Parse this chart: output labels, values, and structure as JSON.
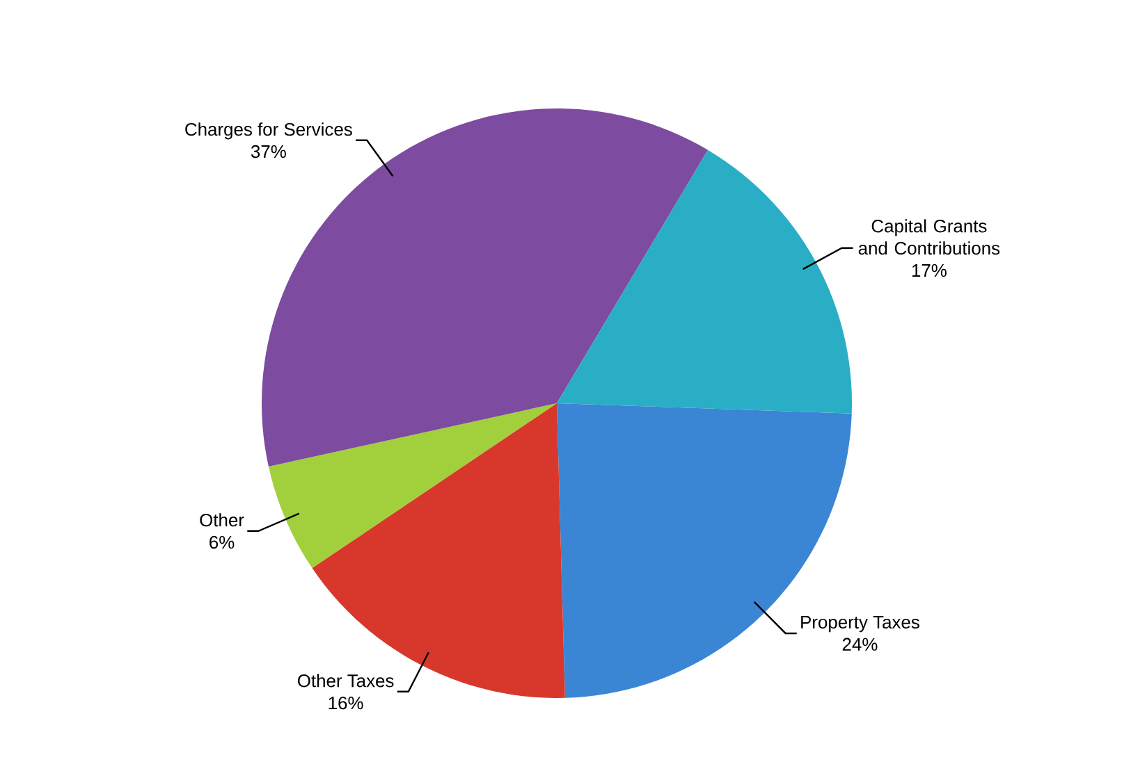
{
  "chart_data": {
    "type": "pie",
    "categories": [
      "Property Taxes",
      "Other Taxes",
      "Other",
      "Charges for Services",
      "Capital Grants and Contributions"
    ],
    "values": [
      24,
      16,
      6,
      37,
      17
    ],
    "value_labels": [
      "24%",
      "16%",
      "6%",
      "37%",
      "17%"
    ],
    "colors": [
      "#3a86d4",
      "#d8382c",
      "#a2cf3c",
      "#7d4b9f",
      "#2aaec6"
    ]
  }
}
